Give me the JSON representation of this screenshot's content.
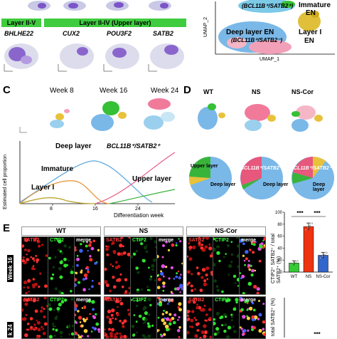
{
  "panel_A_tail": {
    "layer_tag_1": "Layer II-V",
    "layer_tag_2": "Layer II-IV (Upper layer)",
    "genes": [
      "BHLHE22",
      "CUX2",
      "POU3F2",
      "SATB2"
    ]
  },
  "panel_B_tail": {
    "labels": {
      "bcl_satb": "(BCL11B⁺/SATB2⁺)",
      "immature": "Immature",
      "en": "EN",
      "deep_layer": "Deep layer EN",
      "deep_sub": "(BCL11B⁺/SATB2⁻)",
      "layer1": "Layer I",
      "layer1_en": "EN"
    },
    "xlabel": "UMAP_1",
    "ylabel": "UMAP_2"
  },
  "panel_C": {
    "letter": "C",
    "weeks": [
      "Week 8",
      "Week 16",
      "Week 24"
    ],
    "curve_labels": {
      "deep": "Deep layer",
      "bcl": "BCL11B⁺/SATB2⁺",
      "immature": "Immature",
      "upper": "Upper layer",
      "layer1": "Layer I"
    },
    "ylabel": "Estimated cell proportion",
    "xlabel": "Differentiation week",
    "xticks": [
      "8",
      "16",
      "24"
    ]
  },
  "panel_D": {
    "letter": "D",
    "conditions": [
      "WT",
      "NS",
      "NS-Cor"
    ],
    "pie_labels": {
      "upper": "Upper layer",
      "deep": "Deep layer",
      "bcl": "BCL11B⁺/SATB2⁺"
    }
  },
  "panel_E": {
    "letter": "E",
    "conditions": [
      "WT",
      "NS",
      "NS-Cor"
    ],
    "channels": [
      "SATB2",
      "CTIP2",
      "merge"
    ],
    "rows": [
      "Week 16",
      "k 24"
    ],
    "ylabel_top": "CTIP2⁺ SATB2⁺ / total SATB2⁺ (%)",
    "ylabel_bottom": "total SATB2⁺ (%)",
    "sig": [
      "***",
      "***",
      "***"
    ],
    "xticks": [
      "WT",
      "NS",
      "NS-Cor"
    ],
    "yticks": [
      "0",
      "20",
      "40",
      "60",
      "80",
      "100"
    ]
  },
  "chart_data": {
    "type": "bar",
    "categories": [
      "WT",
      "NS",
      "NS-Cor"
    ],
    "values": [
      15,
      76,
      28
    ],
    "errors": [
      4,
      6,
      5
    ],
    "colors": [
      "#33cc33",
      "#ee3311",
      "#3366cc"
    ],
    "ylabel": "CTIP2⁺ SATB2⁺ / total SATB2⁺ (%)",
    "ylim": [
      0,
      100
    ]
  }
}
